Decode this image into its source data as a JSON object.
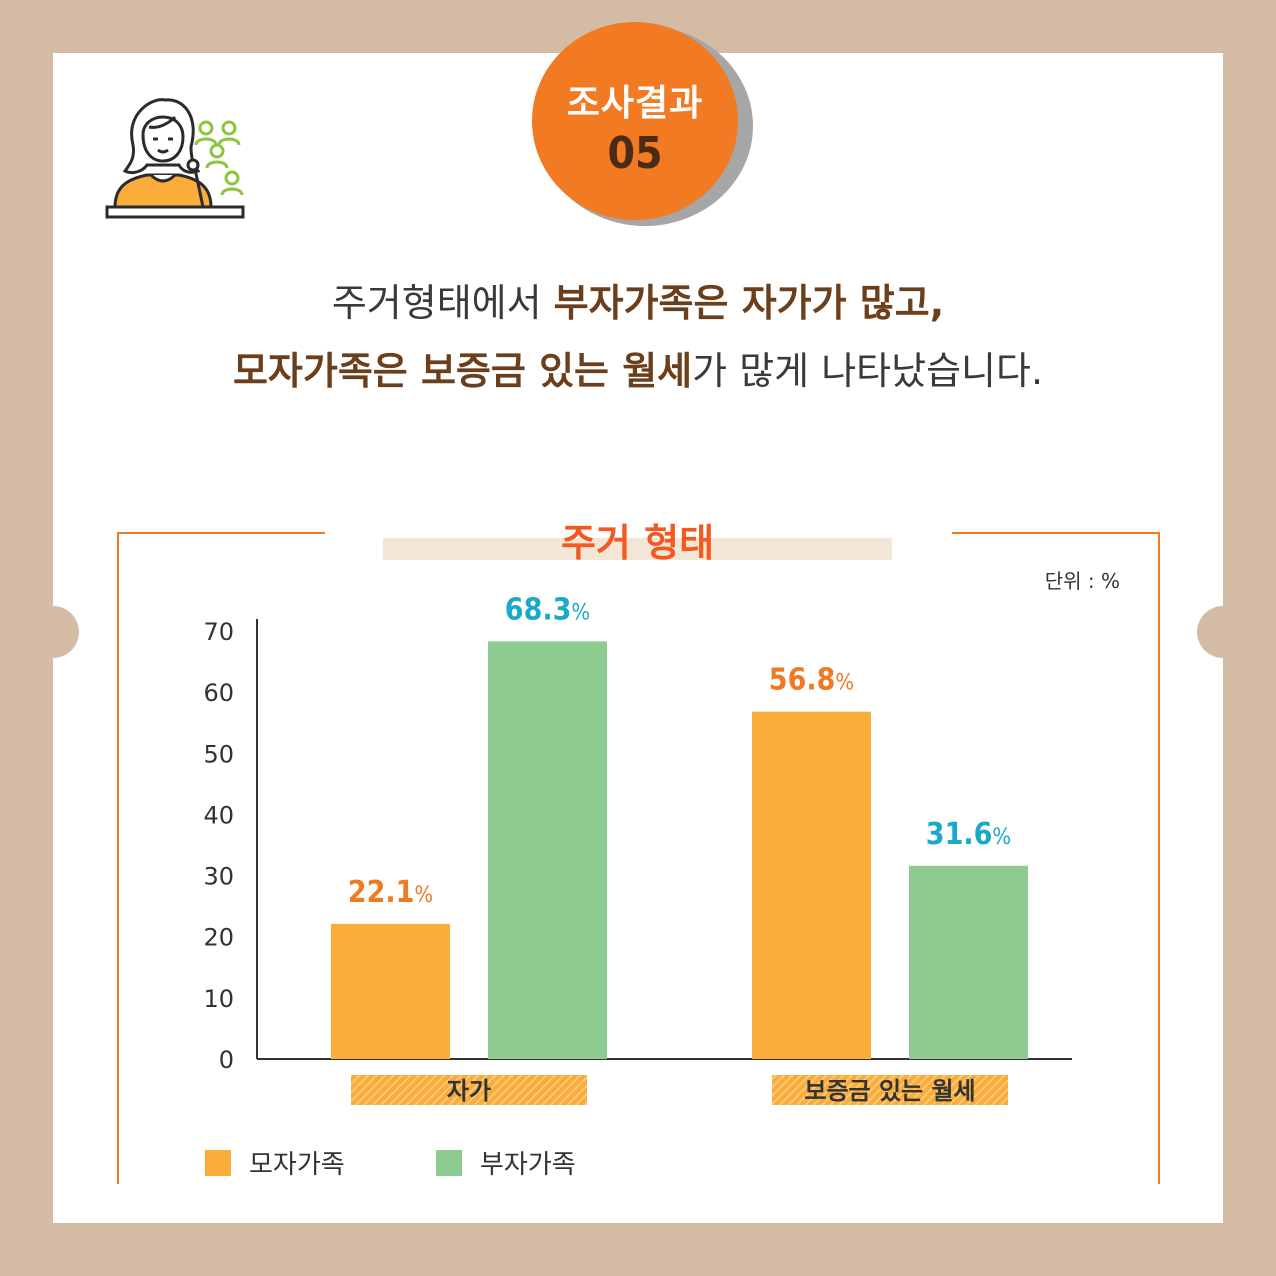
{
  "badge": {
    "label": "조사결과",
    "number": "05"
  },
  "headline": {
    "line1": [
      {
        "text": "주거형태에서 ",
        "em": false
      },
      {
        "text": "부자가족은 자가가 많고,",
        "em": true
      }
    ],
    "line2": [
      {
        "text": "모자가족은 보증금 있는 월세",
        "em": true
      },
      {
        "text": "가 많게 나타났습니다.",
        "em": false
      }
    ]
  },
  "colors": {
    "mother": "#fbad3c",
    "father": "#8dcb91",
    "mother_label": "#f07a22",
    "father_label": "#1ba9c9",
    "accent": "#f27a22",
    "brand_dark": "#6b3e1c"
  },
  "icons": [
    "speaker-woman-icon",
    "audience-icon"
  ],
  "chart_data": {
    "type": "bar",
    "title": "주거 형태",
    "unit": "단위 : %",
    "categories": [
      "자가",
      "보증금 있는 월세"
    ],
    "series": [
      {
        "name": "모자가족",
        "values": [
          22.1,
          56.8
        ],
        "labels": [
          "22.1",
          "56.8"
        ]
      },
      {
        "name": "부자가족",
        "values": [
          68.3,
          31.6
        ],
        "labels": [
          "68.3",
          "31.6"
        ]
      }
    ],
    "value_suffix": "%",
    "yticks": [
      0,
      10,
      20,
      30,
      40,
      50,
      60,
      70
    ],
    "ylim": [
      0,
      70
    ],
    "grid": false,
    "legend": "bottom-left"
  }
}
